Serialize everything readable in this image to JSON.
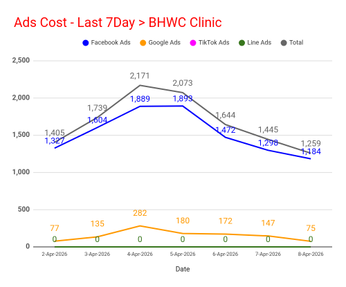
{
  "chart_data": {
    "type": "line",
    "title": "Ads Cost - Last 7Day > BHWC Clinic",
    "x_label": "Date",
    "categories": [
      "2-Apr-2026",
      "3-Apr-2026",
      "4-Apr-2026",
      "5-Apr-2026",
      "6-Apr-2026",
      "7-Apr-2026",
      "8-Apr-2026"
    ],
    "series": [
      {
        "name": "Facebook Ads",
        "color": "#0000ff",
        "values": [
          1327,
          1604,
          1889,
          1893,
          1472,
          1298,
          1184
        ],
        "value_labels": [
          "1,327",
          "1,604",
          "1,889",
          "1,893",
          "1,472",
          "1,298",
          "1,184"
        ],
        "show_labels": true
      },
      {
        "name": "Google Ads",
        "color": "#ff9900",
        "values": [
          77,
          135,
          282,
          180,
          172,
          147,
          75
        ],
        "show_labels": true
      },
      {
        "name": "TikTok Ads",
        "color": "#ff00ff",
        "values": [
          0,
          0,
          0,
          0,
          0,
          0,
          0
        ],
        "show_labels": false
      },
      {
        "name": "Line Ads",
        "color": "#38761d",
        "values": [
          0,
          0,
          0,
          0,
          0,
          0,
          0
        ],
        "show_labels": true
      },
      {
        "name": "Total",
        "color": "#666666",
        "values": [
          1405,
          1739,
          2171,
          2073,
          1644,
          1445,
          1259
        ],
        "value_labels": [
          "1,405",
          "1,739",
          "2,171",
          "2,073",
          "1,644",
          "1,445",
          "1,259"
        ],
        "show_labels": true
      }
    ],
    "ylim": [
      0,
      2500
    ],
    "yticks": [
      0,
      500,
      {
        "value": 1000,
        "label": "1,000"
      },
      {
        "value": 1500,
        "label": "1,500"
      },
      {
        "value": 2000,
        "label": "2,000"
      },
      {
        "value": 2500,
        "label": "2,500"
      }
    ],
    "grid": true,
    "legend": "top"
  }
}
